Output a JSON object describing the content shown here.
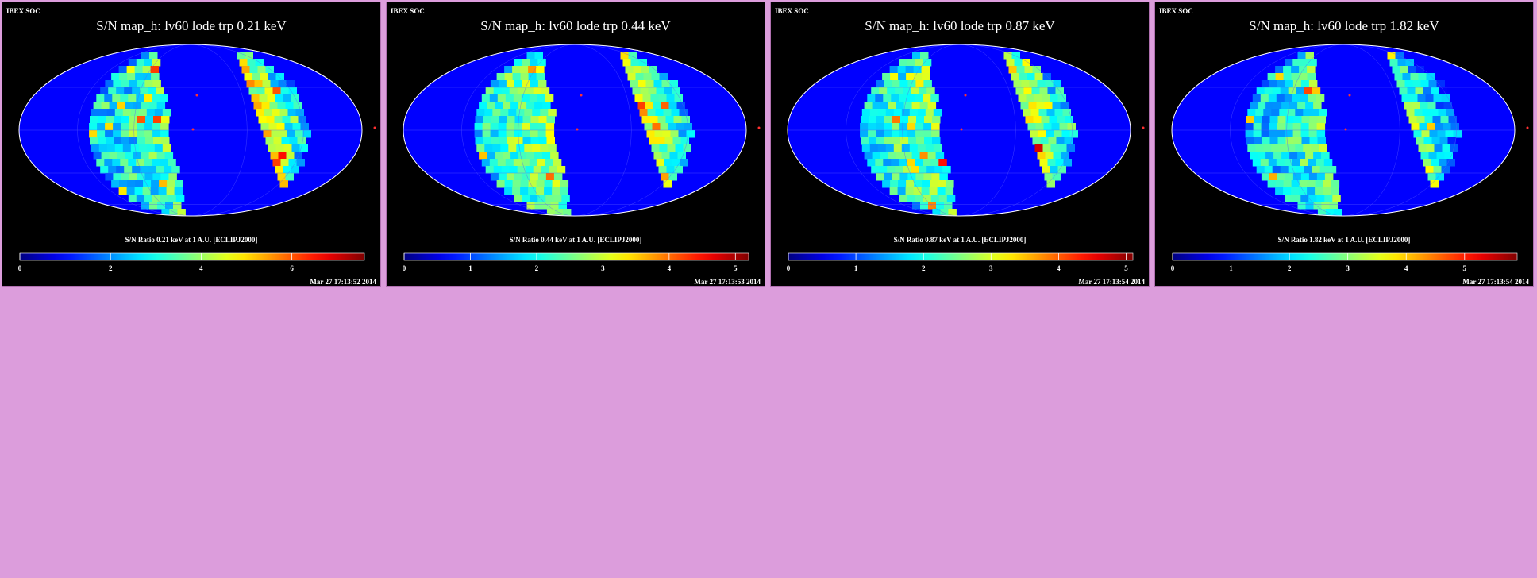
{
  "panels": [
    {
      "credit": "IBEX SOC",
      "title": "S/N  map_h: lv60 lode trp 0.21 keV",
      "map_title": "S/N Ratio 0.21 keV at 1 A.U. [ECLIPJ2000]",
      "timestamp": "Mar 27 17:13:52 2014",
      "colorbar": {
        "min": 0,
        "max": 7.6,
        "ticks": [
          0,
          2,
          4,
          6
        ]
      }
    },
    {
      "credit": "IBEX SOC",
      "title": "S/N  map_h: lv60 lode trp 0.44 keV",
      "map_title": "S/N Ratio 0.44 keV at 1 A.U. [ECLIPJ2000]",
      "timestamp": "Mar 27 17:13:53 2014",
      "colorbar": {
        "min": 0,
        "max": 5.2,
        "ticks": [
          0,
          1,
          2,
          3,
          4,
          5
        ]
      }
    },
    {
      "credit": "IBEX SOC",
      "title": "S/N  map_h: lv60 lode trp 0.87 keV",
      "map_title": "S/N Ratio 0.87 keV at 1 A.U. [ECLIPJ2000]",
      "timestamp": "Mar 27 17:13:54 2014",
      "colorbar": {
        "min": 0,
        "max": 5.1,
        "ticks": [
          0,
          1,
          2,
          3,
          4,
          5
        ]
      }
    },
    {
      "credit": "IBEX SOC",
      "title": "S/N  map_h: lv60 lode trp 1.82 keV",
      "map_title": "S/N Ratio 1.82 keV at 1 A.U. [ECLIPJ2000]",
      "timestamp": "Mar 27 17:13:54 2014",
      "colorbar": {
        "min": 0,
        "max": 5.9,
        "ticks": [
          0,
          1,
          2,
          3,
          4,
          5
        ]
      }
    }
  ],
  "colors": {
    "background": "#dc9ddc",
    "panel": "#000000",
    "sky": "#0000ff",
    "outline": "#ffffff",
    "marker": "#ff3030"
  }
}
